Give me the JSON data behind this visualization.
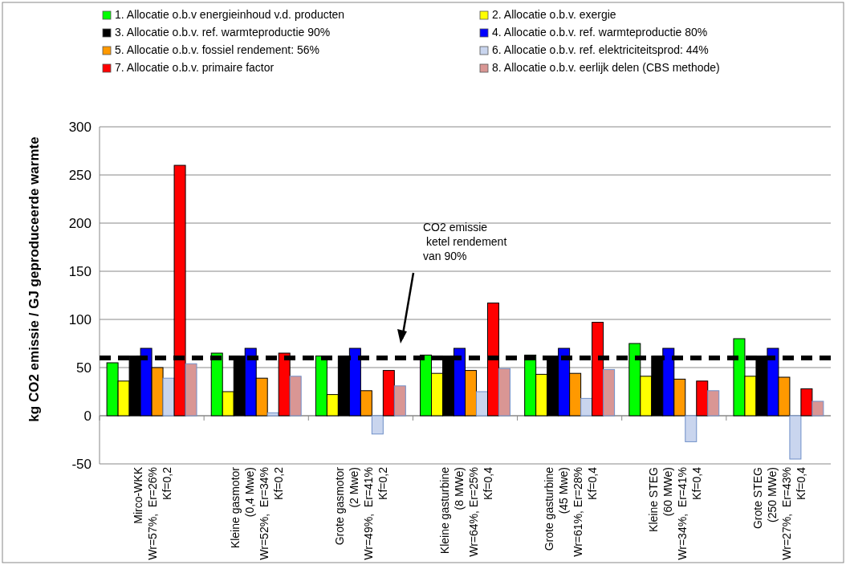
{
  "chart_data": {
    "type": "bar",
    "ylabel": "kg CO2 emissie / GJ geproduceerde warmte",
    "categories": [
      "Mirco-WKK\nWr=57%,  Er=26%\nKf=0,2",
      "Kleine gasmotor\n(0,4 Mwe)\nWr=52%,  Er=34%\nKf=0,2",
      "Grote gasmotor\n(2 Mwe)\nWr=49%,  Er=41%\nKf=0,2",
      "Kleine gasturbine\n(8 MWe)\nWr=64%, Er=25%\nKf=0,4",
      "Grote gasturbine\n(45 Mwe)\nWr=61%, Er=28%\nKf=0,4",
      "Kleine STEG\n(60 MWe)\nWr=34%,  Er=41%\nKf=0,4",
      "Grote STEG\n(250 MWe)\nWr=27%,  Er=43%\nKf=0,4"
    ],
    "series": [
      {
        "name": "1. Allocatie o.b.v energieinhoud v.d. producten",
        "color": "#00ff00",
        "values": [
          55,
          65,
          62,
          63,
          63,
          75,
          80
        ]
      },
      {
        "name": "2. Allocatie o.b.v. exergie",
        "color": "#ffff00",
        "values": [
          36,
          25,
          22,
          44,
          43,
          41,
          41
        ]
      },
      {
        "name": "3. Allocatie o.b.v. ref.  warmteproductie 90%",
        "color": "#000000",
        "values": [
          62,
          62,
          62,
          62,
          62,
          62,
          62
        ]
      },
      {
        "name": "4. Allocatie o.b.v. ref.  warmteproductie 80%",
        "color": "#0000ff",
        "values": [
          70,
          70,
          70,
          70,
          70,
          70,
          70
        ]
      },
      {
        "name": "5. Allocatie o.b.v. fossiel rendement: 56%",
        "color": "#ff9900",
        "values": [
          50,
          39,
          26,
          47,
          44,
          38,
          40
        ]
      },
      {
        "name": "6. Allocatie o.b.v. ref.  elektriciteitsprod: 44%",
        "color": "#c9d5ee",
        "values": [
          39,
          3,
          -19,
          25,
          18,
          -27,
          -45
        ]
      },
      {
        "name": "7. Allocatie o.b.v. primaire factor",
        "color": "#ff0000",
        "values": [
          260,
          65,
          47,
          117,
          97,
          36,
          28
        ]
      },
      {
        "name": "8. Allocatie o.b.v. eerlijk delen (CBS methode)",
        "color": "#d99694",
        "values": [
          54,
          41,
          31,
          49,
          48,
          26,
          15
        ]
      }
    ],
    "ylim": [
      -50,
      300
    ],
    "yticks": [
      -50,
      0,
      50,
      100,
      150,
      200,
      250,
      300
    ],
    "grid": "y",
    "legend": "top",
    "ref_lines": [
      {
        "axis": "y",
        "value": 60,
        "color": "#000000",
        "line_style": "dashed"
      }
    ],
    "annotations": [
      "CO2 emissie\n ketel rendement\nvan 90%"
    ]
  }
}
